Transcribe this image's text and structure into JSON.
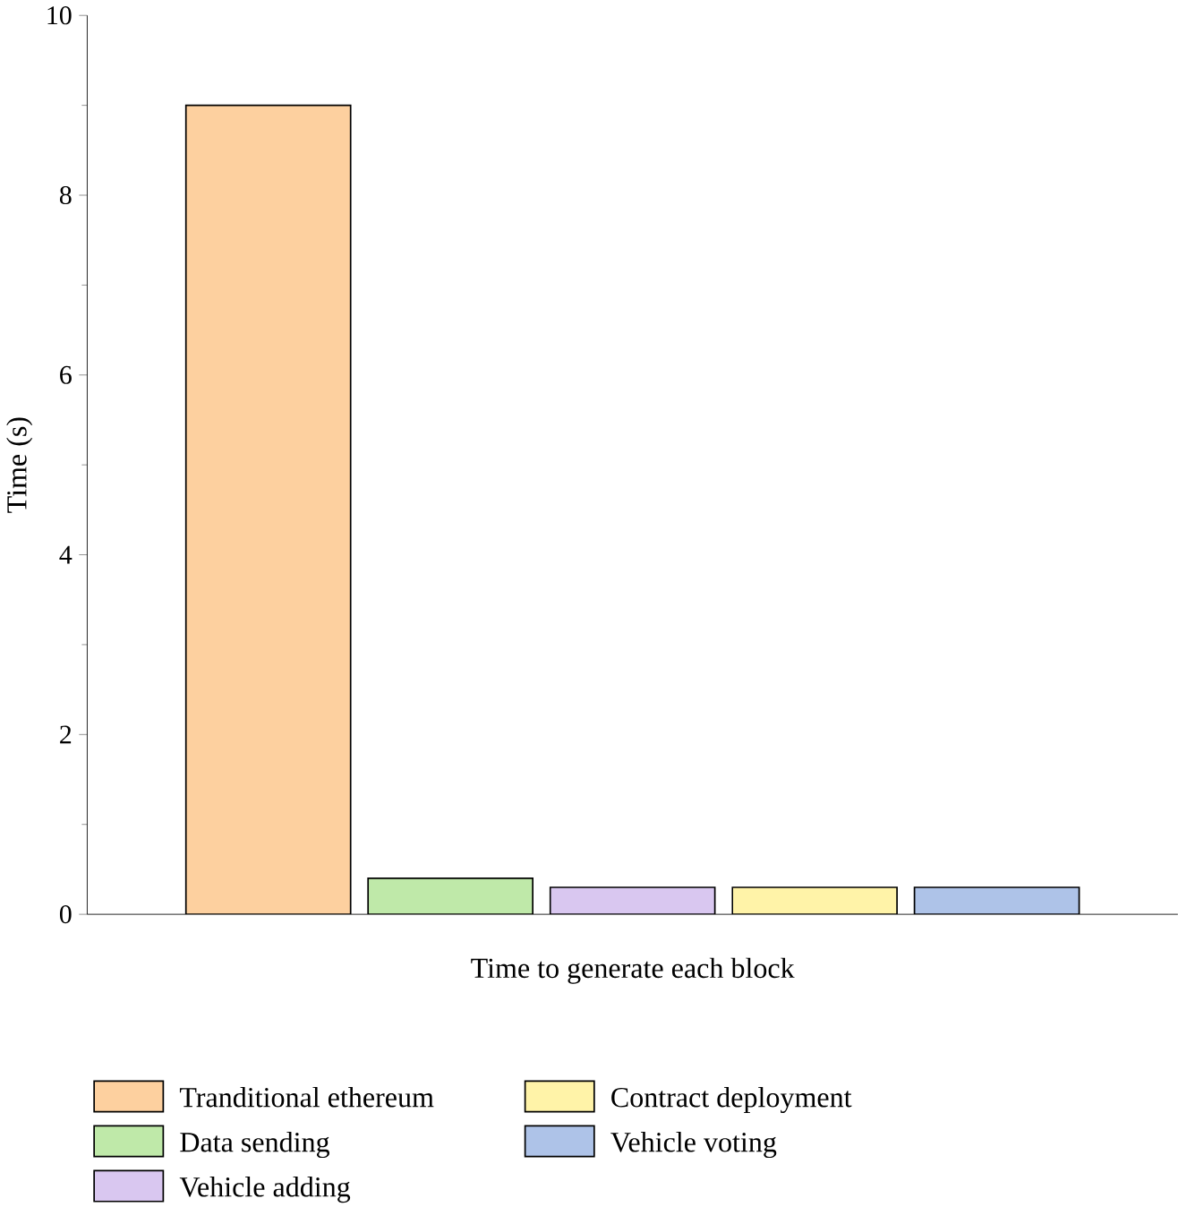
{
  "chart_data": {
    "type": "bar",
    "xlabel": "Time to generate each block",
    "ylabel": "Time (s)",
    "categories": [
      null
    ],
    "series": [
      {
        "name": "Tranditional ethereum",
        "color": "#fdd09f",
        "values": [
          9
        ]
      },
      {
        "name": "Data sending",
        "color": "#bfe9a9",
        "values": [
          0.4
        ]
      },
      {
        "name": "Vehicle adding",
        "color": "#d9c7f0",
        "values": [
          0.3
        ]
      },
      {
        "name": "Contract deployment",
        "color": "#fff3a8",
        "values": [
          0.3
        ]
      },
      {
        "name": "Vehicle voting",
        "color": "#aec3e8",
        "values": [
          0.3
        ]
      }
    ],
    "ylim": [
      0,
      10
    ],
    "yticks": [
      0,
      2,
      4,
      6,
      8,
      10
    ],
    "grid": false,
    "legend": "bottom"
  }
}
